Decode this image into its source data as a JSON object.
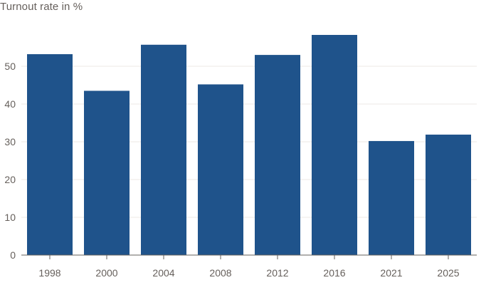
{
  "chart_data": {
    "type": "bar",
    "title": "Turnout rate in %",
    "xlabel": "",
    "ylabel": "",
    "categories": [
      "1998",
      "2000",
      "2004",
      "2008",
      "2012",
      "2016",
      "2021",
      "2025"
    ],
    "series": [
      {
        "values": [
          53.2,
          43.5,
          55.7,
          45.2,
          53.0,
          58.3,
          30.2,
          31.9
        ]
      }
    ],
    "ylim": [
      0,
      60
    ],
    "yticks": [
      0,
      10,
      20,
      30,
      40,
      50
    ],
    "grid": true,
    "legend": "none",
    "bar_color": "#1f538b",
    "grid_color": "#eeeae6",
    "axis_color": "#66605c",
    "text_color": "#66605c"
  }
}
